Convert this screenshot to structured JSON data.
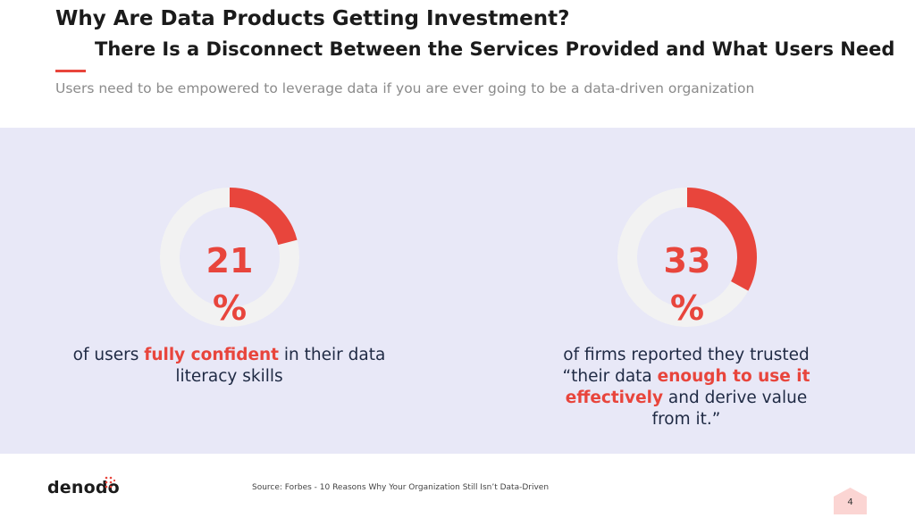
{
  "slide": {
    "title": "Why Are Data Products Getting Investment?",
    "subtitle": "There Is a Disconnect Between the Services Provided and What Users Need",
    "tagline": "Users need to be empowered to leverage data if you are ever going to be a data-driven organization"
  },
  "stats": [
    {
      "value": 21,
      "value_text": "21",
      "unit": "%",
      "text_before": "of users ",
      "highlight": "fully confident",
      "text_after": " in their data literacy skills"
    },
    {
      "value": 33,
      "value_text": "33",
      "unit": "%",
      "text_before": "of firms reported they trusted “their data ",
      "highlight": "enough to use it effectively",
      "text_after": " and derive value from it.”"
    }
  ],
  "footer": {
    "logo": "denodo",
    "source": "Source:    Forbes - 10 Reasons Why Your Organization Still Isn’t Data-Driven",
    "page_number": "4"
  },
  "colors": {
    "accent": "#e8453c",
    "band": "#e8e8f7",
    "ring_track": "#f2f2f2",
    "text_dark": "#1f2a44"
  }
}
